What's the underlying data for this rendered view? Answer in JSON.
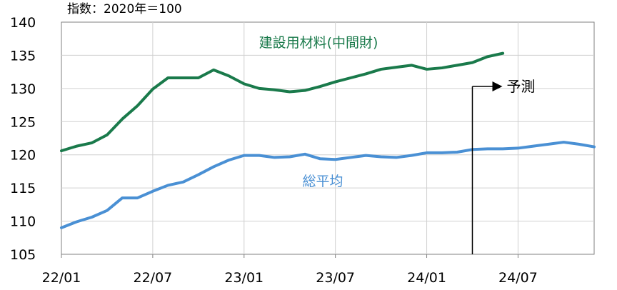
{
  "unit_label": "指数：2020年＝100",
  "forecast": {
    "label": "予測",
    "start_x": "24/04"
  },
  "chart_data": {
    "type": "line",
    "x": [
      "22/01",
      "22/02",
      "22/03",
      "22/04",
      "22/05",
      "22/06",
      "22/07",
      "22/08",
      "22/09",
      "22/10",
      "22/11",
      "22/12",
      "23/01",
      "23/02",
      "23/03",
      "23/04",
      "23/05",
      "23/06",
      "23/07",
      "23/08",
      "23/09",
      "23/10",
      "23/11",
      "23/12",
      "24/01",
      "24/02",
      "24/03",
      "24/04",
      "24/05",
      "24/06",
      "24/07",
      "24/08",
      "24/09",
      "24/10",
      "24/11",
      "24/12"
    ],
    "x_tick_labels": [
      "22/01",
      "22/07",
      "23/01",
      "23/07",
      "24/01",
      "24/07"
    ],
    "y_tick_labels": [
      "105",
      "110",
      "115",
      "120",
      "125",
      "130",
      "135",
      "140"
    ],
    "ylim": [
      105,
      140
    ],
    "grid": true,
    "colors": {
      "green": "#1a7a4b",
      "blue": "#4a90d4"
    },
    "series": [
      {
        "name": "建設用材料(中間財)",
        "color": "#1a7a4b",
        "values": [
          120.6,
          121.3,
          121.8,
          123.0,
          125.4,
          127.4,
          129.9,
          131.6,
          131.6,
          131.6,
          132.8,
          131.9,
          130.7,
          130.0,
          129.8,
          129.5,
          129.7,
          130.3,
          131.0,
          131.6,
          132.2,
          132.9,
          133.2,
          133.5,
          132.9,
          133.1,
          133.5,
          133.9,
          134.8,
          135.3,
          null,
          null,
          null,
          null,
          null,
          null
        ]
      },
      {
        "name": "総平均",
        "color": "#4a90d4",
        "values": [
          109.0,
          109.9,
          110.6,
          111.6,
          113.5,
          113.5,
          114.5,
          115.4,
          115.9,
          117.0,
          118.2,
          119.2,
          119.9,
          119.9,
          119.6,
          119.7,
          120.1,
          119.4,
          119.3,
          119.6,
          119.9,
          119.7,
          119.6,
          119.9,
          120.3,
          120.3,
          120.4,
          120.8,
          120.9,
          120.9,
          121.0,
          121.3,
          121.6,
          121.9,
          121.6,
          121.2
        ]
      }
    ]
  }
}
